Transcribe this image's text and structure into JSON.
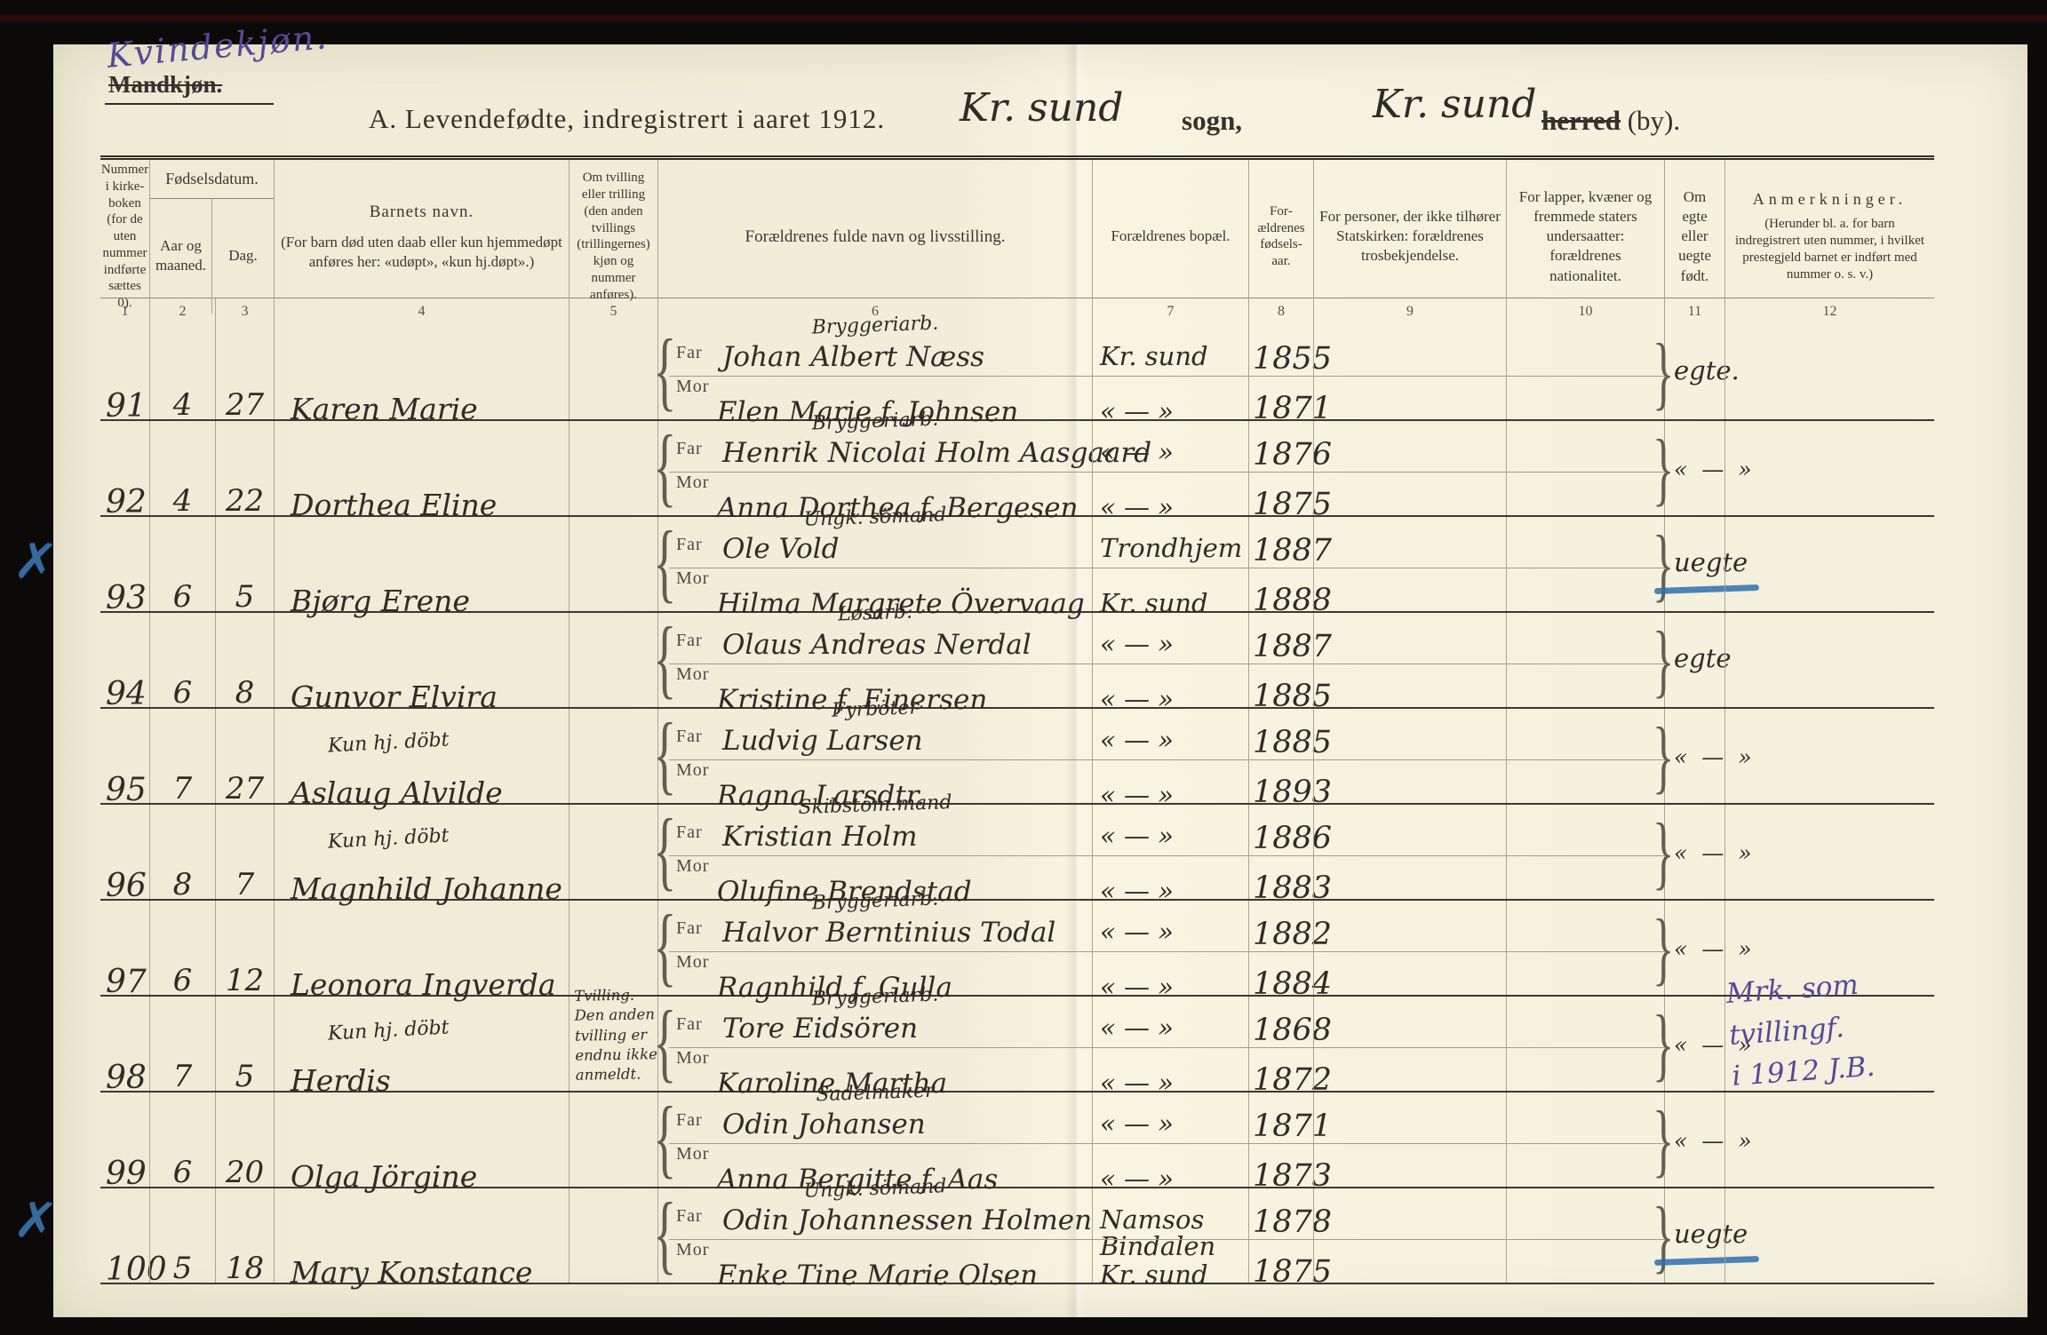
{
  "ink_colors": {
    "handwriting_black": "#2e2c26",
    "handwriting_purple": "#564a97",
    "blue_pencil": "#2f6fae"
  },
  "corner": {
    "handwritten_note": "Kvindekjøn.",
    "printed_struck_label": "Mandkjøn."
  },
  "title": {
    "printed": "A.  Levendefødte, indregistrert i aaret 1912.",
    "parish_handwritten": "Kr. sund",
    "parish_label": "sogn,",
    "district_handwritten": "Kr. sund",
    "district_struck": "herred",
    "district_suffix": "(by)."
  },
  "table": {
    "headers": {
      "col1": "Nummer i kirke-boken (for de uten nummer indførte sættes 0).",
      "birthdate_group": "Fødselsdatum.",
      "col2": "Aar og maaned.",
      "col3": "Dag.",
      "col4_title": "Barnets navn.",
      "col4_sub": "(For barn død uten daab eller kun hjemmedøpt anføres her: «udøpt», «kun hj.døpt».)",
      "col5": "Om tvilling eller trilling (den anden tvillings (trillingernes) kjøn og nummer anføres).",
      "col6": "Forældrenes fulde navn og livsstilling.",
      "col7": "Forældrenes bopæl.",
      "col8": "For­ældrenes fødsels­aar.",
      "col9": "For personer, der ikke tilhører Statskirken: forældrenes trosbekjendelse.",
      "col10": "For lapper, kvæner og fremmede staters undersaatter: forældrenes nationalitet.",
      "col11": "Om egte eller uegte født.",
      "col12_title": "Anmerkninger.",
      "col12_sub": "(Herunder bl. a. for barn indregistrert uten nummer, i hvilket prestegjeld barnet er indført med nummer o. s. v.)"
    },
    "column_numbers": [
      "1",
      "2",
      "3",
      "4",
      "5",
      "6",
      "7",
      "8",
      "9",
      "10",
      "11",
      "12"
    ],
    "row_labels": {
      "father": "Far",
      "mother": "Mor"
    },
    "entries": [
      {
        "number": "91",
        "month": "4",
        "day": "27",
        "child_name": "Karen Marie",
        "child_note": "",
        "twin_note": "",
        "occupation": "Bryggeriarb.",
        "father_name": "Johan Albert Næss",
        "mother_name": "Elen Marie f. Johnsen",
        "father_residence": "Kr. sund",
        "mother_residence": "« — »",
        "father_year": "1855",
        "mother_year": "1871",
        "legitimacy": "egte.",
        "legitimacy_ditto": false,
        "blue_underline": false,
        "remark": "",
        "margin_x": false
      },
      {
        "number": "92",
        "month": "4",
        "day": "22",
        "child_name": "Dorthea Eline",
        "child_note": "",
        "twin_note": "",
        "occupation": "Bryggeriarb.",
        "father_name": "Henrik Nicolai Holm Aasgaard",
        "mother_name": "Anna Dorthea f. Bergesen",
        "father_residence": "« — »",
        "mother_residence": "« — »",
        "father_year": "1876",
        "mother_year": "1875",
        "legitimacy": "« — »",
        "legitimacy_ditto": true,
        "blue_underline": false,
        "remark": "",
        "margin_x": false
      },
      {
        "number": "93",
        "month": "6",
        "day": "5",
        "child_name": "Bjørg Erene",
        "child_note": "",
        "twin_note": "",
        "occupation": "Ungk. sömand",
        "father_name": "Ole Vold",
        "mother_name": "Hilma Margrete Övervaag",
        "father_residence": "Trondhjem",
        "mother_residence": "Kr. sund",
        "father_year": "1887",
        "mother_year": "1888",
        "legitimacy": "uegte",
        "legitimacy_ditto": false,
        "blue_underline": true,
        "remark": "",
        "margin_x": true
      },
      {
        "number": "94",
        "month": "6",
        "day": "8",
        "child_name": "Gunvor Elvira",
        "child_note": "",
        "twin_note": "",
        "occupation": "Løsarb.",
        "father_name": "Olaus Andreas Nerdal",
        "mother_name": "Kristine f. Einersen",
        "father_residence": "« — »",
        "mother_residence": "« — »",
        "father_year": "1887",
        "mother_year": "1885",
        "legitimacy": "egte",
        "legitimacy_ditto": false,
        "blue_underline": false,
        "remark": "",
        "margin_x": false
      },
      {
        "number": "95",
        "month": "7",
        "day": "27",
        "child_name": "Aslaug Alvilde",
        "child_note": "Kun hj. döbt",
        "twin_note": "",
        "occupation": "Fyrböter",
        "father_name": "Ludvig Larsen",
        "mother_name": "Ragna Larsdtr.",
        "father_residence": "« — »",
        "mother_residence": "« — »",
        "father_year": "1885",
        "mother_year": "1893",
        "legitimacy": "« — »",
        "legitimacy_ditto": true,
        "blue_underline": false,
        "remark": "",
        "margin_x": false
      },
      {
        "number": "96",
        "month": "8",
        "day": "7",
        "child_name": "Magnhild Johanne",
        "child_note": "Kun hj. döbt",
        "twin_note": "",
        "occupation": "Skibstöm.mand",
        "father_name": "Kristian Holm",
        "mother_name": "Olufine Brendstad",
        "father_residence": "« — »",
        "mother_residence": "« — »",
        "father_year": "1886",
        "mother_year": "1883",
        "legitimacy": "« — »",
        "legitimacy_ditto": true,
        "blue_underline": false,
        "remark": "",
        "margin_x": false
      },
      {
        "number": "97",
        "month": "6",
        "day": "12",
        "child_name": "Leonora Ingverda",
        "child_note": "",
        "twin_note": "",
        "occupation": "Bryggeriarb.",
        "father_name": "Halvor Berntinius Todal",
        "mother_name": "Ragnhild f. Gulla",
        "father_residence": "« — »",
        "mother_residence": "« — »",
        "father_year": "1882",
        "mother_year": "1884",
        "legitimacy": "« — »",
        "legitimacy_ditto": true,
        "blue_underline": false,
        "remark": "",
        "margin_x": false
      },
      {
        "number": "98",
        "month": "7",
        "day": "5",
        "child_name": "Herdis",
        "child_note": "Kun hj. döbt",
        "twin_note": "Tvilling.\nDen anden\ntvilling er\nendnu ikke\nanmeldt.",
        "occupation": "Bryggeriarb.",
        "father_name": "Tore Eidsören",
        "mother_name": "Karoline Martha",
        "father_residence": "« — »",
        "mother_residence": "« — »",
        "father_year": "1868",
        "mother_year": "1872",
        "legitimacy": "« — »",
        "legitimacy_ditto": true,
        "blue_underline": false,
        "remark": "Mrk. som tvillingf.\ni 1912  J.B.",
        "margin_x": false
      },
      {
        "number": "99",
        "month": "6",
        "day": "20",
        "child_name": "Olga Jörgine",
        "child_note": "",
        "twin_note": "",
        "occupation": "Sadelmaker",
        "father_name": "Odin Johansen",
        "mother_name": "Anna Bergitte f. Aas",
        "father_residence": "« — »",
        "mother_residence": "« — »",
        "father_year": "1871",
        "mother_year": "1873",
        "legitimacy": "« — »",
        "legitimacy_ditto": true,
        "blue_underline": false,
        "remark": "",
        "margin_x": false
      },
      {
        "number": "100",
        "month": "5",
        "day": "18",
        "child_name": "Mary Konstance",
        "child_note": "",
        "twin_note": "",
        "occupation": "Ungk. sömand",
        "father_name": "Odin Johannessen Holmen",
        "mother_name": "Enke Tine Marie Olsen",
        "father_residence": "Namsos\nBindalen",
        "mother_residence": "Kr. sund",
        "father_year": "1878",
        "mother_year": "1875",
        "legitimacy": "uegte",
        "legitimacy_ditto": false,
        "blue_underline": true,
        "remark": "",
        "margin_x": true
      }
    ]
  }
}
